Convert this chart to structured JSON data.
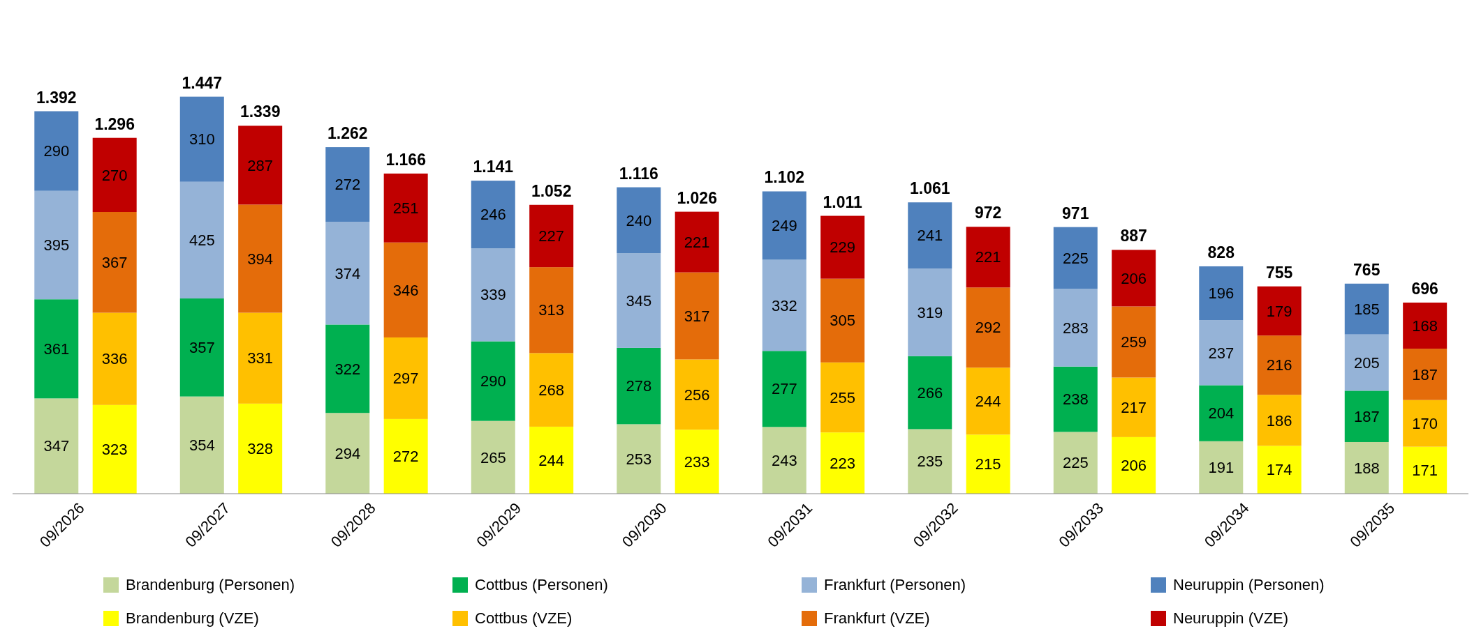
{
  "chart_data": {
    "type": "bar",
    "stacked": true,
    "data_labels": true,
    "legend": "bottom",
    "categories": [
      "09/2026",
      null,
      "09/2027",
      null,
      "09/2028",
      null,
      "09/2029",
      null,
      "09/2030",
      null,
      "09/2031",
      null,
      "09/2032",
      null,
      "09/2033",
      null,
      "09/2034",
      null,
      "09/2035",
      null
    ],
    "series": [
      {
        "name": "Brandenburg (Personen)",
        "color": "#c4d79b",
        "values": [
          347,
          null,
          354,
          null,
          294,
          null,
          265,
          null,
          253,
          null,
          243,
          null,
          235,
          null,
          225,
          null,
          191,
          null,
          188,
          null
        ]
      },
      {
        "name": "Cottbus (Personen)",
        "color": "#00b050",
        "values": [
          361,
          null,
          357,
          null,
          322,
          null,
          290,
          null,
          278,
          null,
          277,
          null,
          266,
          null,
          238,
          null,
          204,
          null,
          187,
          null
        ]
      },
      {
        "name": "Frankfurt (Personen)",
        "color": "#95b3d7",
        "values": [
          395,
          null,
          425,
          null,
          374,
          null,
          339,
          null,
          345,
          null,
          332,
          null,
          319,
          null,
          283,
          null,
          237,
          null,
          205,
          null
        ]
      },
      {
        "name": "Neuruppin (Personen)",
        "color": "#4f81bd",
        "values": [
          290,
          null,
          310,
          null,
          272,
          null,
          246,
          null,
          240,
          null,
          249,
          null,
          241,
          null,
          225,
          null,
          196,
          null,
          185,
          null
        ]
      },
      {
        "name": "Brandenburg (VZE)",
        "color": "#ffff00",
        "values": [
          null,
          323,
          null,
          328,
          null,
          272,
          null,
          244,
          null,
          233,
          null,
          223,
          null,
          215,
          null,
          206,
          null,
          174,
          null,
          171
        ]
      },
      {
        "name": "Cottbus (VZE)",
        "color": "#ffc000",
        "values": [
          null,
          336,
          null,
          331,
          null,
          297,
          null,
          268,
          null,
          256,
          null,
          255,
          null,
          244,
          null,
          217,
          null,
          186,
          null,
          170
        ]
      },
      {
        "name": "Frankfurt (VZE)",
        "color": "#e46c0a",
        "values": [
          null,
          367,
          null,
          394,
          null,
          346,
          null,
          313,
          null,
          317,
          null,
          305,
          null,
          292,
          null,
          259,
          null,
          216,
          null,
          187
        ]
      },
      {
        "name": "Neuruppin (VZE)",
        "color": "#c00000",
        "values": [
          null,
          270,
          null,
          287,
          null,
          251,
          null,
          227,
          null,
          221,
          null,
          229,
          null,
          221,
          null,
          206,
          null,
          179,
          null,
          168
        ]
      }
    ],
    "totals": [
      "1.392",
      "1.296",
      "1.447",
      "1.339",
      "1.262",
      "1.166",
      "1.141",
      "1.052",
      "1.116",
      "1.026",
      "1.102",
      "1.011",
      "1.061",
      "972",
      "971",
      "887",
      "828",
      "755",
      "765",
      "696"
    ]
  }
}
